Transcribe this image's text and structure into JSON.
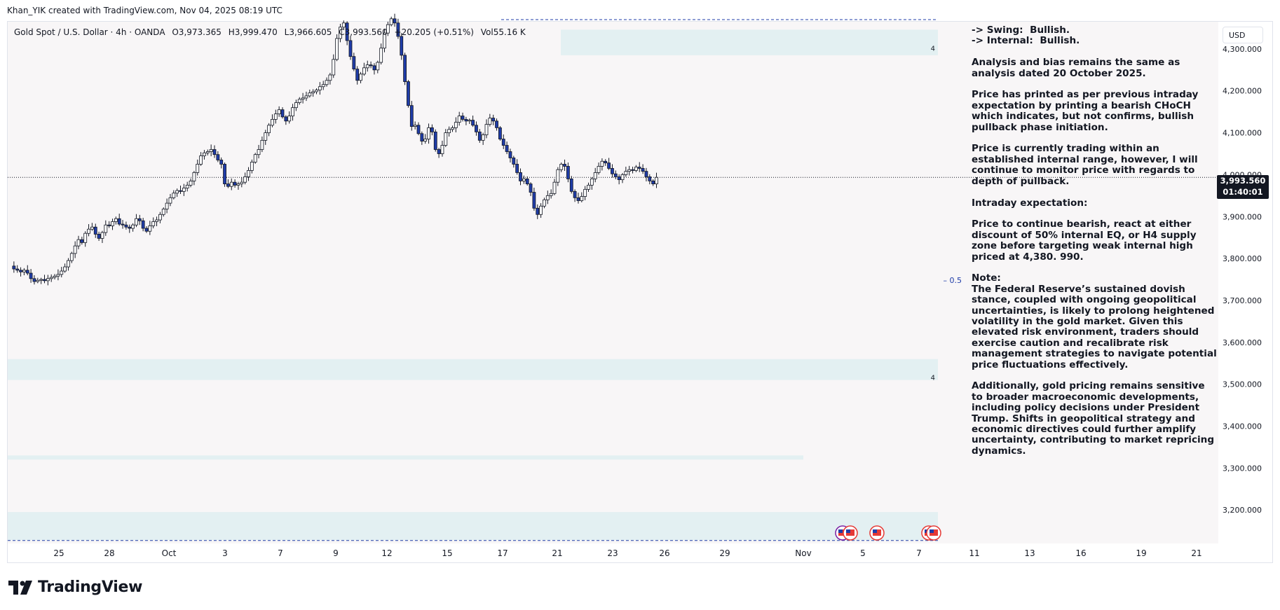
{
  "credit": "Khan_YIK created with TradingView.com, Nov 04, 2025 08:19 UTC",
  "legend": {
    "symbol": "Gold Spot / U.S. Dollar · 4h · OANDA",
    "open": "O3,973.365",
    "high": "H3,999.470",
    "low": "L3,966.605",
    "close": "C3,993.560",
    "change": "+20.205 (+0.51%)",
    "volume": "Vol55.16 K"
  },
  "currency": "USD",
  "last_price": {
    "price": "3,993.560",
    "countdown": "01:40:01"
  },
  "zone_label": "4",
  "eq_label": "0.5",
  "notes": "-> Swing:  Bullish.\n-> Internal:  Bullish.\n\nAnalysis and bias remains the same as analysis dated 20 October 2025.\n\nPrice has printed as per previous intraday expectation by printing a bearish CHoCH which indicates, but not confirms, bullish pullback phase initiation.\n\nPrice is currently trading within an established internal range, however, I will continue to monitor price with regards to depth of pullback.\n\nIntraday expectation:\n\nPrice to continue bearish, react at either discount of 50% internal EQ, or H4 supply zone before targeting weak internal high priced at 4,380. 990.\n\nNote:\nThe Federal Reserve’s sustained dovish stance, coupled with ongoing geopolitical uncertainties, is likely to prolong heightened volatility in the gold market. Given this elevated risk environment, traders should exercise caution and recalibrate risk management strategies to navigate potential price fluctuations effectively.\n\nAdditionally, gold pricing remains sensitive to broader macroeconomic developments, including policy decisions under President Trump. Shifts in geopolitical strategy and economic directives could further amplify uncertainty, contributing to market repricing dynamics.",
  "brand": "TradingView",
  "colors": {
    "candle_up": "#ffffff",
    "candle_down": "#1f3ca8",
    "wick": "#131722",
    "zone": "#e3f0f2",
    "plot_bg": "#f8f6f7",
    "dashed_red": "#e53935",
    "dashed_blue": "#1f3ca8"
  },
  "chart_data": {
    "type": "candlestick",
    "symbol": "Gold Spot / U.S. Dollar",
    "timeframe": "4h",
    "ylim": [
      3120,
      4365
    ],
    "x_ticks": [
      "25",
      "28",
      "Oct",
      "3",
      "7",
      "9",
      "12",
      "15",
      "17",
      "21",
      "23",
      "26",
      "29",
      "Nov",
      "5",
      "7",
      "11",
      "13",
      "16",
      "19",
      "21"
    ],
    "y_ticks": [
      "4,300.000",
      "4,200.000",
      "4,100.000",
      "4,000.000",
      "3,900.000",
      "3,800.000",
      "3,700.000",
      "3,600.000",
      "3,500.000",
      "3,400.000",
      "3,300.000",
      "3,200.000"
    ],
    "y_tick_values": [
      4300,
      4200,
      4100,
      4000,
      3900,
      3800,
      3700,
      3600,
      3500,
      3400,
      3300,
      3200
    ],
    "last_price": 3993.56,
    "eq_level": 3748,
    "zones": [
      {
        "top": 4346,
        "bottom": 4285,
        "label": "4"
      },
      {
        "top": 3560,
        "bottom": 3510,
        "label": "4"
      },
      {
        "top": 3330,
        "bottom": 3320,
        "label": ""
      },
      {
        "top": 3195,
        "bottom": 3128,
        "label": "4"
      }
    ],
    "close_path": [
      3782,
      3775,
      3772,
      3768,
      3772,
      3765,
      3752,
      3745,
      3748,
      3750,
      3747,
      3752,
      3755,
      3758,
      3762,
      3770,
      3780,
      3795,
      3812,
      3830,
      3845,
      3838,
      3860,
      3870,
      3875,
      3858,
      3848,
      3862,
      3880,
      3878,
      3888,
      3895,
      3882,
      3880,
      3875,
      3872,
      3880,
      3895,
      3890,
      3872,
      3865,
      3878,
      3888,
      3892,
      3905,
      3918,
      3932,
      3945,
      3956,
      3962,
      3960,
      3968,
      3975,
      3985,
      4005,
      4025,
      4045,
      4052,
      4055,
      4060,
      4048,
      4035,
      4025,
      3978,
      3972,
      3982,
      3975,
      3978,
      3982,
      3995,
      4010,
      4030,
      4048,
      4060,
      4082,
      4100,
      4118,
      4132,
      4145,
      4155,
      4138,
      4128,
      4140,
      4160,
      4172,
      4180,
      4183,
      4188,
      4195,
      4198,
      4202,
      4210,
      4215,
      4225,
      4238,
      4275,
      4325,
      4352,
      4362,
      4320,
      4282,
      4252,
      4225,
      4240,
      4255,
      4262,
      4260,
      4250,
      4268,
      4302,
      4338,
      4358,
      4372,
      4362,
      4330,
      4285,
      4222,
      4165,
      4115,
      4118,
      4098,
      4080,
      4085,
      4112,
      4102,
      4060,
      4050,
      4070,
      4100,
      4108,
      4112,
      4125,
      4140,
      4132,
      4128,
      4130,
      4118,
      4102,
      4082,
      4095,
      4120,
      4135,
      4128,
      4112,
      4085,
      4070,
      4055,
      4040,
      4025,
      4005,
      3985,
      3990,
      3978,
      3958,
      3920,
      3905,
      3925,
      3940,
      3950,
      3955,
      3982,
      4012,
      4025,
      4020,
      3990,
      3960,
      3945,
      3938,
      3948,
      3965,
      3975,
      3990,
      4005,
      4020,
      4032,
      4028,
      4015,
      4002,
      3995,
      3988,
      4000,
      4008,
      4012,
      4010,
      4018,
      4015,
      4008,
      3995,
      3985,
      3978,
      3993.56
    ]
  }
}
